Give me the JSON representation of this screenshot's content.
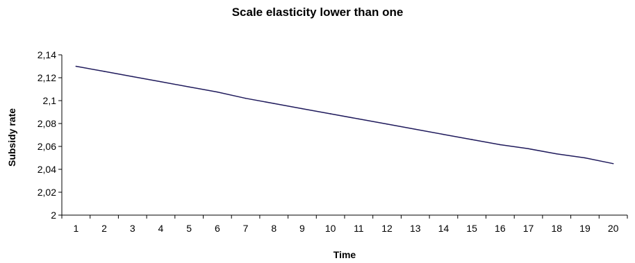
{
  "chart_data": {
    "type": "line",
    "title": "Scale elasticity lower than one",
    "xlabel": "Time",
    "ylabel": "Subsidy rate",
    "x": [
      1,
      2,
      3,
      4,
      5,
      6,
      7,
      8,
      9,
      10,
      11,
      12,
      13,
      14,
      15,
      16,
      17,
      18,
      19,
      20
    ],
    "x_tick_labels": [
      "1",
      "2",
      "3",
      "4",
      "5",
      "6",
      "7",
      "8",
      "9",
      "10",
      "11",
      "12",
      "13",
      "14",
      "15",
      "16",
      "17",
      "18",
      "19",
      "20"
    ],
    "y_ticks": [
      2,
      2.02,
      2.04,
      2.06,
      2.08,
      2.1,
      2.12,
      2.14
    ],
    "y_tick_labels": [
      "2",
      "2,02",
      "2,04",
      "2,06",
      "2,08",
      "2,1",
      "2,12",
      "2,14"
    ],
    "ylim": [
      2,
      2.14
    ],
    "grid": false,
    "legend": "none",
    "series": [
      {
        "color": "#1f1a5c",
        "values": [
          2.13,
          2.1255,
          2.121,
          2.1165,
          2.112,
          2.1075,
          2.102,
          2.0975,
          2.093,
          2.0885,
          2.084,
          2.0795,
          2.075,
          2.0705,
          2.066,
          2.0615,
          2.058,
          2.0535,
          2.05,
          2.045
        ]
      }
    ]
  }
}
